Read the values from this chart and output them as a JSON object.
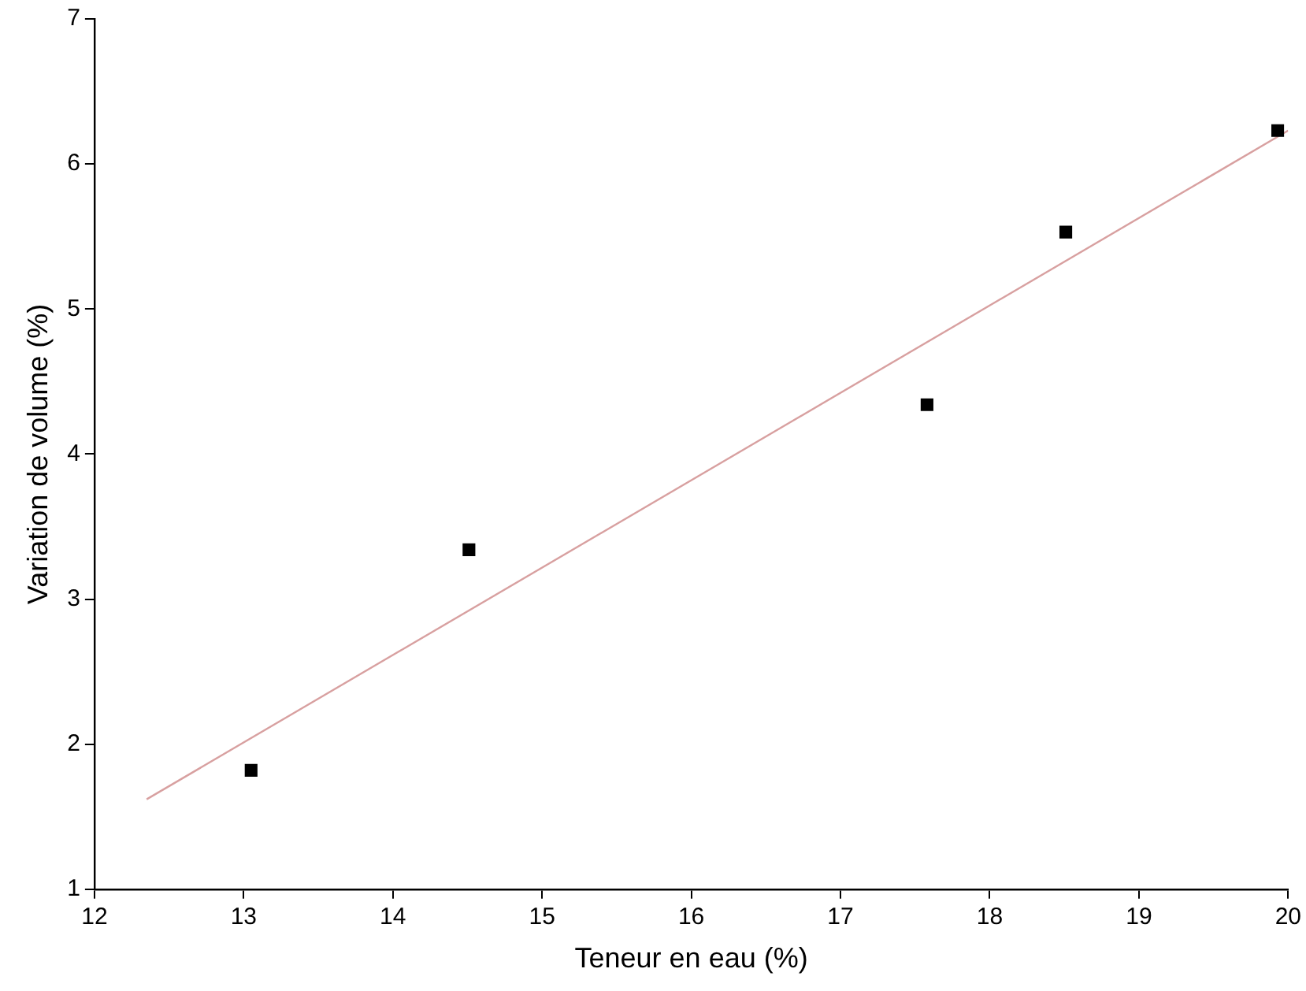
{
  "chart_data": {
    "type": "scatter",
    "xlabel": "Teneur en eau (%)",
    "ylabel": "Variation de volume (%)",
    "xlim": [
      12,
      20
    ],
    "xticks": [
      12,
      13,
      14,
      15,
      16,
      17,
      18,
      19,
      20
    ],
    "ylim": [
      1,
      7
    ],
    "yticks": [
      1,
      2,
      3,
      4,
      5,
      6,
      7
    ],
    "grid": false,
    "legend": false,
    "marker": "square",
    "series": [
      {
        "color": "#000000",
        "x": [
          13.05,
          14.51,
          17.58,
          18.51,
          19.93
        ],
        "values": [
          1.82,
          3.34,
          4.34,
          5.53,
          6.23
        ]
      },
      {
        "type": "line",
        "color": "#d8a0a0",
        "x": [
          12.35,
          20
        ],
        "values": [
          1.62,
          6.23
        ],
        "marker": "none"
      }
    ]
  }
}
